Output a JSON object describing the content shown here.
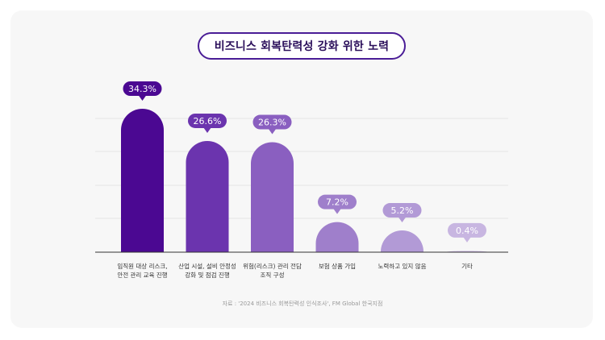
{
  "title": "비즈니스 회복탄력성 강화 위한 노력",
  "source": "자료 : '2024 비즈니스 회복탄력성 인식조사', FM Global 한국지점",
  "chart_data": {
    "type": "bar",
    "title": "비즈니스 회복탄력성 강화 위한 노력",
    "categories": [
      [
        "임직원 대상 리스크,",
        "안전 관리 교육 진행"
      ],
      [
        "산업 시설, 설비 안정성",
        "강화 및 점검 진행"
      ],
      [
        "위험(리스크) 관리 전담",
        "조직 구성"
      ],
      [
        "보험 상품 가입"
      ],
      [
        "노력하고 있지 않음"
      ],
      [
        "기타"
      ]
    ],
    "values": [
      34.3,
      26.6,
      26.3,
      7.2,
      5.2,
      0.4
    ],
    "data_labels": [
      "34.3%",
      "26.6%",
      "26.3%",
      "7.2%",
      "5.2%",
      "0.4%"
    ],
    "colors": [
      "#4b0892",
      "#6b34ae",
      "#8a5fc0",
      "#9f7fcb",
      "#b29ad6",
      "#c8b6e1"
    ],
    "grid": true,
    "legend": "none"
  }
}
